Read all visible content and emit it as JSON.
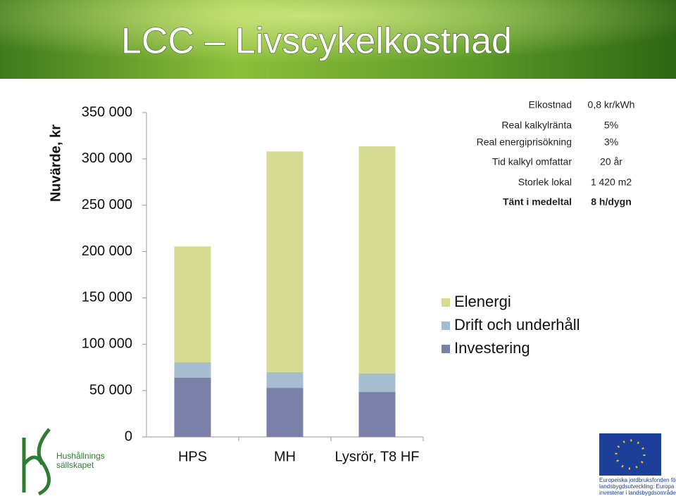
{
  "slide": {
    "title": "LCC – Livscykelkostnad"
  },
  "chart_data": {
    "type": "stacked_bar",
    "y_label": "Nuvärde, kr",
    "categories": [
      "HPS",
      "MH",
      "Lysrör, T8 HF"
    ],
    "series": [
      {
        "name": "Investering",
        "color": "#7a80a8",
        "values": [
          64000,
          53000,
          48500
        ]
      },
      {
        "name": "Drift och underhåll",
        "color": "#a6bdd0",
        "values": [
          16500,
          17000,
          20000
        ]
      },
      {
        "name": "Elenergi",
        "color": "#d5db91",
        "values": [
          125000,
          238000,
          245000
        ]
      }
    ],
    "ylim": [
      0,
      350000
    ],
    "yticks": [
      0,
      {
        "value": 50000,
        "label": "50 000"
      },
      {
        "value": 100000,
        "label": "100 000"
      },
      {
        "value": 150000,
        "label": "150 000"
      },
      {
        "value": 200000,
        "label": "200 000"
      },
      {
        "value": 250000,
        "label": "250 000"
      },
      {
        "value": 300000,
        "label": "300 000"
      },
      {
        "value": 350000,
        "label": "350 000"
      }
    ],
    "grid": false,
    "legend": "right"
  },
  "parameters": [
    {
      "label": "Elkostnad",
      "value": "0,8 kr/kWh"
    },
    {
      "label": "Real kalkylränta",
      "value": "5%"
    },
    {
      "label": "Real energiprisökning",
      "value": "3%"
    },
    {
      "label": "Tid kalkyl omfattar",
      "value": "20 år"
    },
    {
      "label": "Storlek lokal",
      "value": "1 420 m2"
    },
    {
      "label": "Tänt i medeltal",
      "value": "8 h/dygn"
    }
  ],
  "logo_left": [
    "Hushållnings",
    "sällskapet"
  ],
  "logo_right": [
    "Europeiska jordbruksfonden för",
    "landsbygdsutveckling: Europa",
    "investerar i landsbygdsområden"
  ]
}
